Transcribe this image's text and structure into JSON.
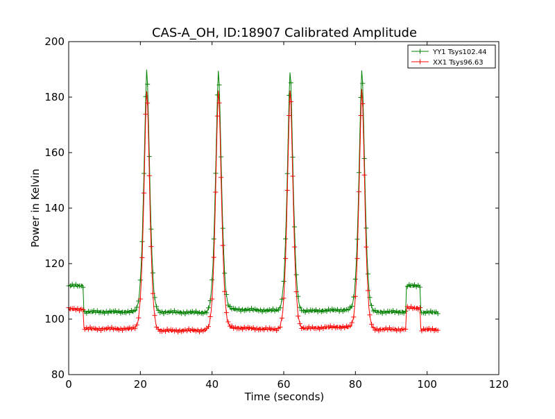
{
  "chart_data": {
    "type": "line",
    "title": "CAS-A_OH, ID:18907 Calibrated Amplitude",
    "xlabel": "Time (seconds)",
    "ylabel": "Power in Kelvin",
    "xlim": [
      0,
      120
    ],
    "ylim": [
      80,
      200
    ],
    "xticks": [
      "0",
      "20",
      "40",
      "60",
      "80",
      "100",
      "120"
    ],
    "yticks": [
      "80",
      "100",
      "120",
      "140",
      "160",
      "180",
      "200"
    ],
    "grid": false,
    "legend_position": "top-right",
    "marker": "+",
    "series": [
      {
        "name": "YY1 Tsys102.44",
        "color": "#008000",
        "baseline": [
          [
            0,
            112
          ],
          [
            4,
            112
          ],
          [
            4.1,
            102.6
          ],
          [
            20,
            102.6
          ],
          [
            24,
            102.6
          ],
          [
            39,
            102.3
          ],
          [
            44,
            103.6
          ],
          [
            59,
            103.0
          ],
          [
            64,
            102.8
          ],
          [
            79,
            103.4
          ],
          [
            84,
            102.6
          ],
          [
            94,
            102.6
          ],
          [
            94.1,
            112
          ],
          [
            98,
            112
          ],
          [
            98.1,
            102.4
          ],
          [
            103,
            102.4
          ]
        ],
        "peaks": [
          {
            "center": 21.8,
            "height": 190
          },
          {
            "center": 41.8,
            "height": 190
          },
          {
            "center": 61.8,
            "height": 190
          },
          {
            "center": 81.8,
            "height": 190
          }
        ]
      },
      {
        "name": "XX1 Tsys96.63",
        "color": "#ff0000",
        "baseline": [
          [
            0,
            103.6
          ],
          [
            4,
            103.6
          ],
          [
            4.1,
            96.5
          ],
          [
            20,
            96.5
          ],
          [
            24,
            95.8
          ],
          [
            39,
            96.0
          ],
          [
            44,
            97.0
          ],
          [
            59,
            96.2
          ],
          [
            64,
            96.5
          ],
          [
            75,
            97.2
          ],
          [
            79,
            97.0
          ],
          [
            84,
            96.3
          ],
          [
            94,
            96.3
          ],
          [
            94.1,
            104
          ],
          [
            98,
            104
          ],
          [
            98.1,
            96.2
          ],
          [
            103,
            96.2
          ]
        ],
        "peaks": [
          {
            "center": 21.8,
            "height": 183
          },
          {
            "center": 41.8,
            "height": 183
          },
          {
            "center": 61.8,
            "height": 183
          },
          {
            "center": 81.8,
            "height": 183
          }
        ]
      }
    ]
  }
}
